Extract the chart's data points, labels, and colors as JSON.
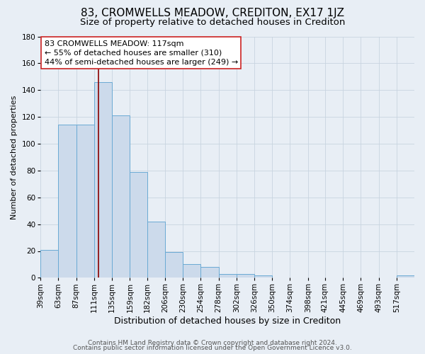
{
  "title": "83, CROMWELLS MEADOW, CREDITON, EX17 1JZ",
  "subtitle": "Size of property relative to detached houses in Crediton",
  "xlabel": "Distribution of detached houses by size in Crediton",
  "ylabel": "Number of detached properties",
  "bar_values": [
    21,
    114,
    114,
    146,
    121,
    79,
    42,
    19,
    10,
    8,
    3,
    3,
    2,
    0,
    0,
    0,
    0,
    0,
    0,
    0,
    2
  ],
  "bin_edges": [
    39,
    63,
    87,
    111,
    135,
    159,
    182,
    206,
    230,
    254,
    278,
    302,
    326,
    350,
    374,
    398,
    421,
    445,
    469,
    493,
    517,
    541
  ],
  "tick_labels": [
    "39sqm",
    "63sqm",
    "87sqm",
    "111sqm",
    "135sqm",
    "159sqm",
    "182sqm",
    "206sqm",
    "230sqm",
    "254sqm",
    "278sqm",
    "302sqm",
    "326sqm",
    "350sqm",
    "374sqm",
    "398sqm",
    "421sqm",
    "445sqm",
    "469sqm",
    "493sqm",
    "517sqm"
  ],
  "bar_color": "#ccdaeb",
  "bar_edge_color": "#6aaad4",
  "vline_x": 117,
  "vline_color": "#8b0000",
  "annotation_line1": "83 CROMWELLS MEADOW: 117sqm",
  "annotation_line2": "← 55% of detached houses are smaller (310)",
  "annotation_line3": "44% of semi-detached houses are larger (249) →",
  "ylim": [
    0,
    180
  ],
  "yticks": [
    0,
    20,
    40,
    60,
    80,
    100,
    120,
    140,
    160,
    180
  ],
  "background_color": "#e8eef5",
  "plot_background": "#e8eef5",
  "grid_color": "#c8d4e0",
  "footer_line1": "Contains HM Land Registry data © Crown copyright and database right 2024.",
  "footer_line2": "Contains public sector information licensed under the Open Government Licence v3.0.",
  "title_fontsize": 11,
  "subtitle_fontsize": 9.5,
  "xlabel_fontsize": 9,
  "ylabel_fontsize": 8,
  "tick_fontsize": 7.5,
  "annotation_fontsize": 8,
  "footer_fontsize": 6.5
}
